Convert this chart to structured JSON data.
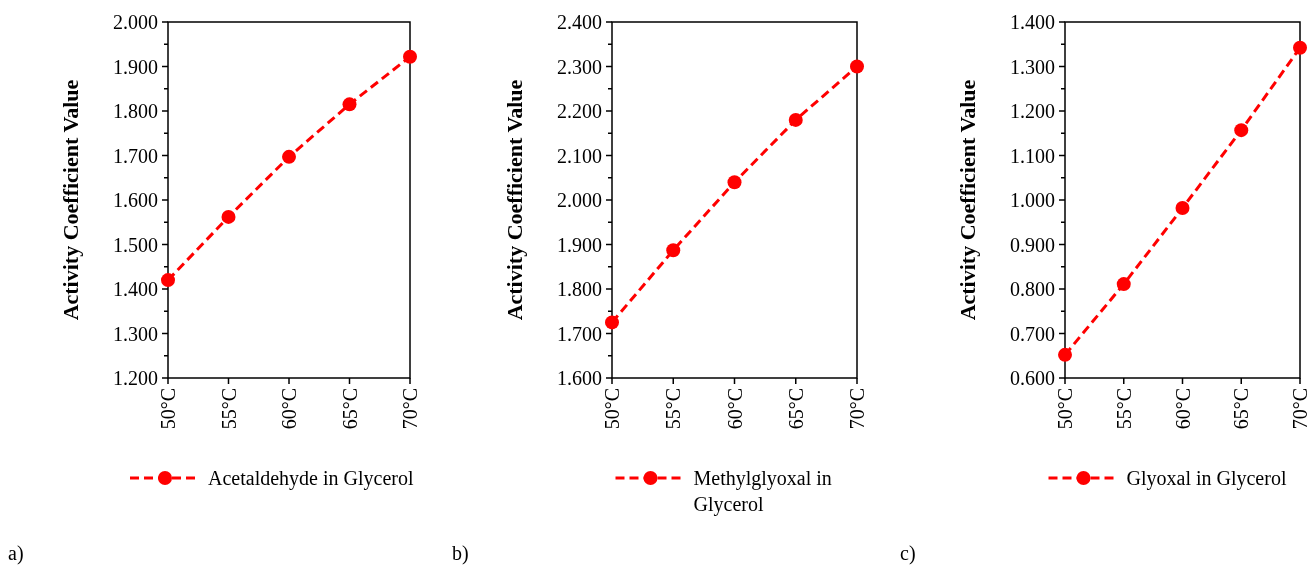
{
  "chart_data": [
    {
      "type": "line",
      "ylabel": "Activity Coefficient Value",
      "categories": [
        "50°C",
        "55°C",
        "60°C",
        "65°C",
        "70°C"
      ],
      "series": [
        {
          "name": "Acetaldehyde in Glycerol",
          "color": "#ff0000",
          "values": [
            1.42,
            1.562,
            1.697,
            1.815,
            1.922
          ]
        }
      ],
      "ylim": [
        1.2,
        2.0
      ],
      "yticks": [
        {
          "value": 1.2,
          "label": "1.200"
        },
        {
          "value": 1.3,
          "label": "1.300"
        },
        {
          "value": 1.4,
          "label": "1.400"
        },
        {
          "value": 1.5,
          "label": "1.500"
        },
        {
          "value": 1.6,
          "label": "1.600"
        },
        {
          "value": 1.7,
          "label": "1.700"
        },
        {
          "value": 1.8,
          "label": "1.800"
        },
        {
          "value": 1.9,
          "label": "1.900"
        },
        {
          "value": 2.0,
          "label": "2.000"
        }
      ],
      "marker": "circle",
      "line_style": "dashed",
      "legend": "bottom",
      "grid": false,
      "annotations": [
        "a)"
      ]
    },
    {
      "type": "line",
      "ylabel": "Activity Coefficient Value",
      "categories": [
        "50°C",
        "55°C",
        "60°C",
        "65°C",
        "70°C"
      ],
      "series": [
        {
          "name": "Methylglyoxal in Glycerol",
          "color": "#ff0000",
          "values": [
            1.725,
            1.887,
            2.04,
            2.18,
            2.3
          ]
        }
      ],
      "ylim": [
        1.6,
        2.4
      ],
      "yticks": [
        {
          "value": 1.6,
          "label": "1.600"
        },
        {
          "value": 1.7,
          "label": "1.700"
        },
        {
          "value": 1.8,
          "label": "1.800"
        },
        {
          "value": 1.9,
          "label": "1.900"
        },
        {
          "value": 2.0,
          "label": "2.000"
        },
        {
          "value": 2.1,
          "label": "2.100"
        },
        {
          "value": 2.2,
          "label": "2.200"
        },
        {
          "value": 2.3,
          "label": "2.300"
        },
        {
          "value": 2.4,
          "label": "2.400"
        }
      ],
      "marker": "circle",
      "line_style": "dashed",
      "legend": "bottom",
      "grid": false,
      "annotations": [
        "b)"
      ]
    },
    {
      "type": "line",
      "ylabel": "Activity Coefficient Value",
      "categories": [
        "50°C",
        "55°C",
        "60°C",
        "65°C",
        "70°C"
      ],
      "series": [
        {
          "name": "Glyoxal in Glycerol",
          "color": "#ff0000",
          "values": [
            0.652,
            0.811,
            0.982,
            1.157,
            1.342
          ]
        }
      ],
      "ylim": [
        0.6,
        1.4
      ],
      "yticks": [
        {
          "value": 0.6,
          "label": "0.600"
        },
        {
          "value": 0.7,
          "label": "0.700"
        },
        {
          "value": 0.8,
          "label": "0.800"
        },
        {
          "value": 0.9,
          "label": "0.900"
        },
        {
          "value": 1.0,
          "label": "1.000"
        },
        {
          "value": 1.1,
          "label": "1.100"
        },
        {
          "value": 1.2,
          "label": "1.200"
        },
        {
          "value": 1.3,
          "label": "1.300"
        },
        {
          "value": 1.4,
          "label": "1.400"
        }
      ],
      "marker": "circle",
      "line_style": "dashed",
      "legend": "bottom",
      "grid": false,
      "annotations": [
        "c)"
      ]
    }
  ]
}
